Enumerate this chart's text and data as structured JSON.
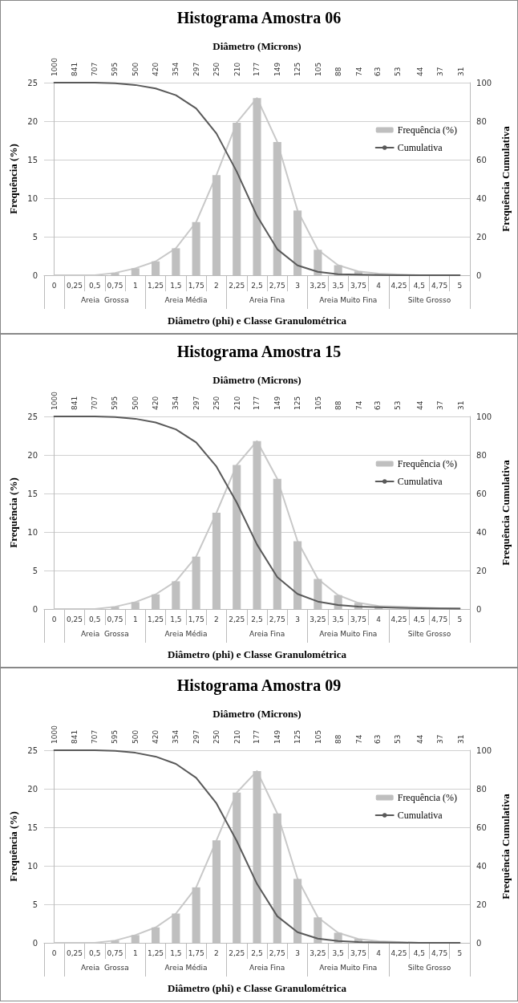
{
  "chart_data": [
    {
      "type": "bar",
      "title": "Histograma Amostra 06",
      "x2label": "Diâmetro (Microns)",
      "xlabel": "Diâmetro (phi) e Classe Granulométrica",
      "ylabel": "Frequência (%)",
      "y2label": "Frequência Cumulativa",
      "categories": [
        "0",
        "0,25",
        "0,5",
        "0,75",
        "1",
        "1,25",
        "1,5",
        "1,75",
        "2",
        "2,25",
        "2,5",
        "2,75",
        "3",
        "3,25",
        "3,5",
        "3,75",
        "4",
        "4,25",
        "4,5",
        "4,75",
        "5"
      ],
      "log": "x2",
      "x2lim": [
        1091,
        28.7
      ],
      "x2ticks": [
        1000,
        841,
        707,
        595,
        500,
        420,
        354,
        297,
        250,
        210,
        177,
        149,
        125,
        105,
        88,
        74,
        63,
        53,
        44,
        37,
        31
      ],
      "ylim": [
        0,
        25
      ],
      "yticks": [
        0,
        5,
        10,
        15,
        20,
        25
      ],
      "y2lim": [
        0,
        100
      ],
      "y2ticks": [
        0,
        20,
        40,
        60,
        80,
        100
      ],
      "grid": "y",
      "legend": "right",
      "marker": "none",
      "annotations": [
        "Areia  Grossa",
        "Areia Média",
        "Areia Fina",
        "Areia Muito Fina",
        "Silte Grosso"
      ],
      "series": [
        {
          "name": "Frequência (%)",
          "color": "#bfbfbf",
          "values": [
            0,
            0,
            0,
            0.3,
            0.9,
            1.8,
            3.5,
            6.9,
            13.0,
            19.8,
            23.0,
            17.3,
            8.4,
            3.3,
            1.3,
            0.5,
            0.2,
            0.1,
            0,
            0,
            0
          ]
        },
        {
          "type": "line",
          "color": "#c8c8c8",
          "values": [
            0,
            0,
            0,
            0.3,
            0.9,
            1.8,
            3.5,
            6.9,
            13.0,
            19.8,
            23.0,
            17.3,
            8.4,
            3.3,
            1.3,
            0.5,
            0.2,
            0.1,
            0,
            0,
            0
          ]
        },
        {
          "name": "Cumulativa",
          "type": "line",
          "axis": "y2",
          "color": "#595959",
          "values": [
            100,
            100,
            100,
            99.7,
            98.8,
            97.0,
            93.5,
            86.6,
            73.6,
            53.8,
            30.8,
            13.5,
            5.1,
            1.8,
            0.5,
            0.3,
            0.1,
            0,
            0,
            0,
            0
          ]
        }
      ]
    },
    {
      "type": "bar",
      "title": "Histograma Amostra 15",
      "x2label": "Diâmetro (Microns)",
      "xlabel": "Diâmetro (phi) e Classe Granulométrica",
      "ylabel": "Frequência (%)",
      "y2label": "Frequência Cumulativa",
      "categories": [
        "0",
        "0,25",
        "0,5",
        "0,75",
        "1",
        "1,25",
        "1,5",
        "1,75",
        "2",
        "2,25",
        "2,5",
        "2,75",
        "3",
        "3,25",
        "3,5",
        "3,75",
        "4",
        "4,25",
        "4,5",
        "4,75",
        "5"
      ],
      "log": "x2",
      "x2lim": [
        1091,
        28.7
      ],
      "x2ticks": [
        1000,
        841,
        707,
        595,
        500,
        420,
        354,
        297,
        250,
        210,
        177,
        149,
        125,
        105,
        88,
        74,
        63,
        53,
        44,
        37,
        31
      ],
      "ylim": [
        0,
        25
      ],
      "yticks": [
        0,
        5,
        10,
        15,
        20,
        25
      ],
      "y2lim": [
        0,
        100
      ],
      "y2ticks": [
        0,
        20,
        40,
        60,
        80,
        100
      ],
      "grid": "y",
      "legend": "right",
      "marker": "none",
      "annotations": [
        "Areia  Grossa",
        "Areia Média",
        "Areia Fina",
        "Areia Muito Fina",
        "Silte Grosso"
      ],
      "series": [
        {
          "name": "Frequência (%)",
          "color": "#bfbfbf",
          "values": [
            0,
            0,
            0,
            0.3,
            0.9,
            1.9,
            3.6,
            6.8,
            12.5,
            18.7,
            21.8,
            16.9,
            8.8,
            3.9,
            1.8,
            0.8,
            0.4,
            null,
            null,
            0.1,
            null
          ]
        },
        {
          "type": "line",
          "color": "#c8c8c8",
          "values": [
            0,
            0,
            0,
            0.3,
            0.9,
            1.9,
            3.6,
            6.8,
            12.5,
            18.7,
            21.8,
            16.9,
            8.8,
            3.9,
            1.8,
            0.8,
            0.4,
            0.3,
            0.2,
            0.1,
            0.1
          ]
        },
        {
          "name": "Cumulativa",
          "type": "line",
          "axis": "y2",
          "color": "#595959",
          "values": [
            100,
            100,
            100,
            99.7,
            98.8,
            96.9,
            93.3,
            86.5,
            74.0,
            55.3,
            33.5,
            16.6,
            7.8,
            3.9,
            2.1,
            1.3,
            0.9,
            0.6,
            0.4,
            0.3,
            0.2
          ]
        }
      ]
    },
    {
      "type": "bar",
      "title": "Histograma Amostra 09",
      "x2label": "Diâmetro (Microns)",
      "xlabel": "Diâmetro (phi) e Classe Granulométrica",
      "ylabel": "Frequência (%)",
      "y2label": "Frequência Cumulativa",
      "categories": [
        "0",
        "0,25",
        "0,5",
        "0,75",
        "1",
        "1,25",
        "1,5",
        "1,75",
        "2",
        "2,25",
        "2,5",
        "2,75",
        "3",
        "3,25",
        "3,5",
        "3,75",
        "4",
        "4,25",
        "4,5",
        "4,75",
        "5"
      ],
      "log": "x2",
      "x2lim": [
        1091,
        28.7
      ],
      "x2ticks": [
        1000,
        841,
        707,
        595,
        500,
        420,
        354,
        297,
        250,
        210,
        177,
        149,
        125,
        105,
        88,
        74,
        63,
        53,
        44,
        37,
        31
      ],
      "ylim": [
        0,
        25
      ],
      "yticks": [
        0,
        5,
        10,
        15,
        20,
        25
      ],
      "y2lim": [
        0,
        100
      ],
      "y2ticks": [
        0,
        20,
        40,
        60,
        80,
        100
      ],
      "grid": "y",
      "legend": "right",
      "marker": "none",
      "annotations": [
        "Areia  Grossa",
        "Areia Média",
        "Areia Fina",
        "Areia Muito Fina",
        "Silte Grosso"
      ],
      "series": [
        {
          "name": "Frequência (%)",
          "color": "#bfbfbf",
          "values": [
            0,
            0,
            0,
            0.3,
            1.0,
            2.0,
            3.8,
            7.2,
            13.3,
            19.5,
            22.3,
            16.8,
            8.3,
            3.3,
            1.3,
            0.5,
            null,
            0.1,
            0,
            0,
            0
          ]
        },
        {
          "type": "line",
          "color": "#c8c8c8",
          "values": [
            0,
            0,
            0,
            0.3,
            1.0,
            2.0,
            3.8,
            7.2,
            13.3,
            19.5,
            22.3,
            16.8,
            8.3,
            3.3,
            1.3,
            0.5,
            0.2,
            0.1,
            0,
            0,
            0
          ]
        },
        {
          "name": "Cumulativa",
          "type": "line",
          "axis": "y2",
          "color": "#595959",
          "values": [
            100,
            100,
            100,
            99.7,
            98.7,
            96.7,
            92.9,
            85.7,
            72.4,
            52.9,
            30.6,
            13.8,
            5.5,
            2.2,
            0.9,
            0.4,
            0.2,
            0.1,
            0,
            0,
            0
          ]
        }
      ]
    }
  ]
}
